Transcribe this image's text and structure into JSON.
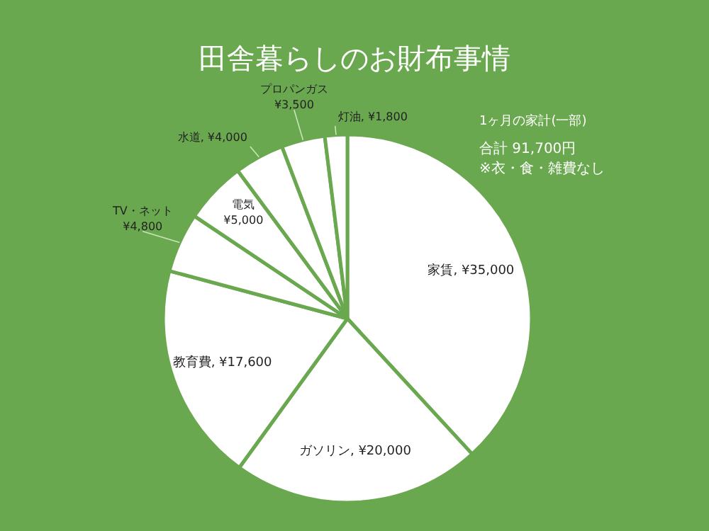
{
  "chart_data": {
    "type": "pie",
    "title": "田舎暮らしのお財布事情",
    "categories": [
      "家賃",
      "ガソリン",
      "教育費",
      "TV・ネット",
      "電気",
      "水道",
      "プロパンガス",
      "灯油"
    ],
    "values": [
      35000,
      20000,
      17600,
      4800,
      5000,
      4000,
      3500,
      1800
    ],
    "value_labels": [
      "¥35,000",
      "¥20,000",
      "¥17,600",
      "¥4,800",
      "¥5,000",
      "¥4,000",
      "¥3,500",
      "¥1,800"
    ],
    "colors": [
      "#ffffff",
      "#ffffff",
      "#ffffff",
      "#ffffff",
      "#ffffff",
      "#ffffff",
      "#ffffff",
      "#ffffff"
    ],
    "annotations": [
      "1ヶ月の家計(一部)",
      "合計 91,700円",
      "※衣・食・雑費なし"
    ]
  }
}
